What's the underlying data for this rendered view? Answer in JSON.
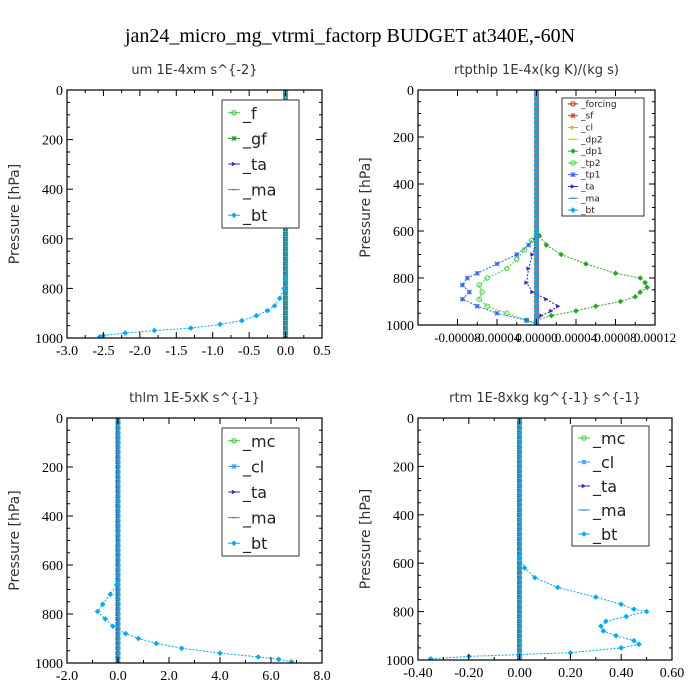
{
  "figure": {
    "title": "jan24_micro_mg_vtrmi_factorp  BUDGET at340E,-60N"
  },
  "chart_data": [
    {
      "type": "line",
      "title": "um  1E-4xm s^{-2}",
      "ylabel": "Pressure [hPa]",
      "xlim": [
        -3.0,
        0.5
      ],
      "ylim": [
        1000,
        0
      ],
      "xticks": [
        "-3.0",
        "-2.5",
        "-2.0",
        "-1.5",
        "-1.0",
        "-0.5",
        "0.0",
        "0.5"
      ],
      "yticks": [
        "0",
        "200",
        "400",
        "600",
        "800",
        "1000"
      ],
      "legend_position": "top-right",
      "series": [
        {
          "name": "_f",
          "color": "#33cc33",
          "p": [
            0,
            1000
          ],
          "x": [
            0,
            0
          ]
        },
        {
          "name": "_gf",
          "color": "#2a8f2a",
          "p": [
            0,
            1000
          ],
          "x": [
            0,
            0
          ]
        },
        {
          "name": "_ta",
          "color": "#2b2bcc",
          "p": [
            0,
            1000
          ],
          "x": [
            0,
            0
          ]
        },
        {
          "name": "_ma",
          "color": "#3399cc",
          "p": [
            0,
            1000
          ],
          "x": [
            0,
            0
          ]
        },
        {
          "name": "_bt",
          "color": "#00aaff",
          "p": [
            0,
            760,
            800,
            840,
            870,
            890,
            910,
            930,
            945,
            960,
            970,
            980,
            990,
            995
          ],
          "x": [
            0,
            0,
            -0.02,
            -0.08,
            -0.15,
            -0.25,
            -0.4,
            -0.6,
            -0.9,
            -1.3,
            -1.8,
            -2.2,
            -2.5,
            -2.55
          ]
        }
      ]
    },
    {
      "type": "line",
      "title": "rtpthlp  1E-4x(kg K)/(kg s)",
      "ylabel": "Pressure [hPa]",
      "xlim": [
        -0.00012,
        0.00012
      ],
      "ylim": [
        1000,
        0
      ],
      "xticks": [
        "-0.00008",
        "-0.00004",
        "0.00000",
        "0.00004",
        "0.00008",
        "0.00012"
      ],
      "yticks": [
        "0",
        "200",
        "400",
        "600",
        "800",
        "1000"
      ],
      "legend_position": "top-right",
      "series": [
        {
          "name": "_forcing",
          "color": "#cc2222",
          "p": [
            0,
            1000
          ],
          "x": [
            0,
            0
          ]
        },
        {
          "name": "_sf",
          "color": "#ee3333",
          "p": [
            0,
            1000
          ],
          "x": [
            0,
            0
          ]
        },
        {
          "name": "_cl",
          "color": "#ffaa00",
          "p": [
            0,
            1000
          ],
          "x": [
            0,
            0
          ]
        },
        {
          "name": "_dp2",
          "color": "#ddcc00",
          "p": [
            0,
            1000
          ],
          "x": [
            0,
            0
          ]
        },
        {
          "name": "_dp1",
          "color": "#22aa22",
          "p": [
            580,
            620,
            660,
            700,
            740,
            780,
            800,
            820,
            840,
            860,
            880,
            900,
            920,
            940,
            960,
            980
          ],
          "x": [
            0,
            3e-06,
            1e-05,
            2.5e-05,
            5e-05,
            8e-05,
            0.000105,
            0.00011,
            0.000112,
            0.000105,
            0.0001,
            8.5e-05,
            6e-05,
            4e-05,
            1.5e-05,
            0
          ]
        },
        {
          "name": "_tp2",
          "color": "#33dd33",
          "p": [
            600,
            640,
            680,
            720,
            760,
            800,
            830,
            860,
            890,
            920,
            950,
            980,
            995
          ],
          "x": [
            0,
            -5e-06,
            -1.2e-05,
            -2e-05,
            -3e-05,
            -5e-05,
            -5.8e-05,
            -5.5e-05,
            -5.8e-05,
            -5e-05,
            -3e-05,
            -1e-05,
            0
          ]
        },
        {
          "name": "_tp1",
          "color": "#3366ff",
          "p": [
            620,
            660,
            700,
            740,
            780,
            800,
            830,
            860,
            890,
            920,
            950,
            980,
            995
          ],
          "x": [
            0,
            -8e-06,
            -2e-05,
            -4e-05,
            -6e-05,
            -7e-05,
            -7.5e-05,
            -6.8e-05,
            -7.5e-05,
            -6e-05,
            -4e-05,
            -1e-05,
            0
          ]
        },
        {
          "name": "_ta",
          "color": "#2b2bcc",
          "p": [
            640,
            700,
            760,
            820,
            860,
            890,
            920,
            940,
            960,
            980
          ],
          "x": [
            0,
            -4e-06,
            -8e-06,
            -1e-05,
            -4e-06,
            1e-05,
            2.2e-05,
            1.5e-05,
            5e-06,
            0
          ]
        },
        {
          "name": "_ma",
          "color": "#3399cc",
          "p": [
            0,
            1000
          ],
          "x": [
            0,
            0
          ]
        },
        {
          "name": "_bt",
          "color": "#00aaff",
          "p": [
            0,
            1000
          ],
          "x": [
            0,
            0
          ]
        }
      ]
    },
    {
      "type": "line",
      "title": "thlm  1E-5xK s^{-1}",
      "ylabel": "Pressure [hPa]",
      "xlim": [
        -2.0,
        8.0
      ],
      "ylim": [
        1000,
        0
      ],
      "xticks": [
        "-2.0",
        "0.0",
        "2.0",
        "4.0",
        "6.0",
        "8.0"
      ],
      "yticks": [
        "0",
        "200",
        "400",
        "600",
        "800",
        "1000"
      ],
      "legend_position": "top-right",
      "series": [
        {
          "name": "_mc",
          "color": "#33cc33",
          "p": [
            0,
            1000
          ],
          "x": [
            0,
            0
          ]
        },
        {
          "name": "_cl",
          "color": "#3399ff",
          "p": [
            0,
            1000
          ],
          "x": [
            0,
            0
          ]
        },
        {
          "name": "_ta",
          "color": "#2b2bcc",
          "p": [
            0,
            1000
          ],
          "x": [
            0,
            0
          ]
        },
        {
          "name": "_ma",
          "color": "#3399cc",
          "p": [
            0,
            1000
          ],
          "x": [
            0,
            0
          ]
        },
        {
          "name": "_bt",
          "color": "#00aaff",
          "p": [
            0,
            680,
            720,
            760,
            790,
            820,
            850,
            880,
            900,
            920,
            940,
            960,
            975,
            985,
            995
          ],
          "x": [
            0,
            -0.05,
            -0.3,
            -0.6,
            -0.8,
            -0.5,
            -0.2,
            0.3,
            0.8,
            1.5,
            2.5,
            4.0,
            5.5,
            6.3,
            6.8
          ]
        }
      ]
    },
    {
      "type": "line",
      "title": "rtm  1E-8xkg kg^{-1} s^{-1}",
      "ylabel": "Pressure [hPa]",
      "xlim": [
        -0.4,
        0.6
      ],
      "ylim": [
        1000,
        0
      ],
      "xticks": [
        "-0.40",
        "-0.20",
        "0.00",
        "0.20",
        "0.40",
        "0.60"
      ],
      "yticks": [
        "0",
        "200",
        "400",
        "600",
        "800",
        "1000"
      ],
      "legend_position": "top-right",
      "series": [
        {
          "name": "_mc",
          "color": "#33cc33",
          "p": [
            0,
            1000
          ],
          "x": [
            0,
            0
          ]
        },
        {
          "name": "_cl",
          "color": "#3399ff",
          "p": [
            0,
            1000
          ],
          "x": [
            0,
            0
          ]
        },
        {
          "name": "_ta",
          "color": "#2b2bcc",
          "p": [
            0,
            1000
          ],
          "x": [
            0,
            0
          ]
        },
        {
          "name": "_ma",
          "color": "#3399cc",
          "p": [
            0,
            1000
          ],
          "x": [
            0,
            0
          ]
        },
        {
          "name": "_bt",
          "color": "#00aaff",
          "p": [
            0,
            580,
            620,
            660,
            700,
            740,
            770,
            790,
            800,
            820,
            840,
            860,
            880,
            900,
            920,
            935,
            950,
            970,
            985,
            995
          ],
          "x": [
            0,
            0,
            0.02,
            0.06,
            0.15,
            0.3,
            0.4,
            0.45,
            0.5,
            0.42,
            0.34,
            0.32,
            0.33,
            0.38,
            0.45,
            0.47,
            0.4,
            0.2,
            -0.2,
            -0.35
          ]
        }
      ]
    }
  ]
}
